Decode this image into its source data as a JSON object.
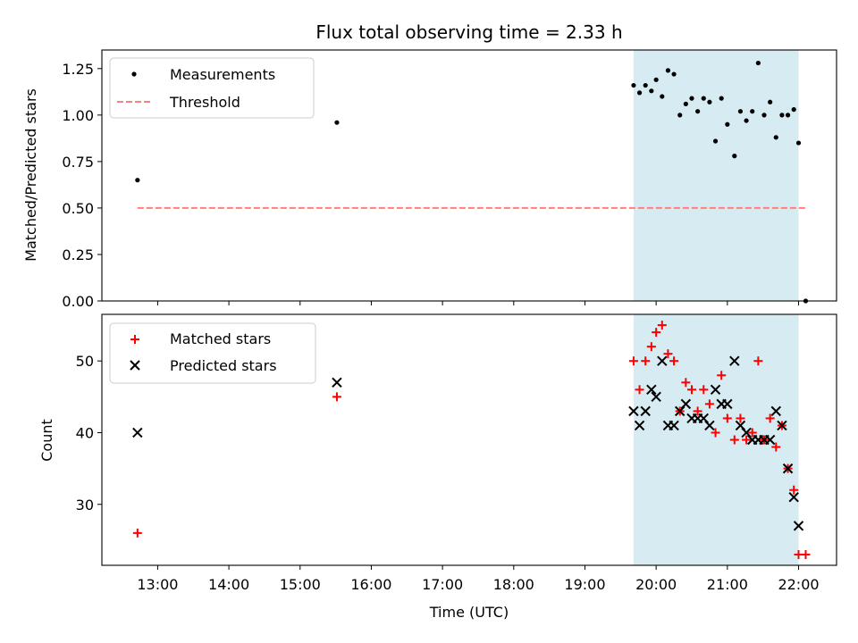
{
  "chart_data": {
    "type": "scatter",
    "title": "Flux total observing time = 2.33 h",
    "xlabel": "Time (UTC)",
    "x_ticks": [
      "13:00",
      "14:00",
      "15:00",
      "16:00",
      "17:00",
      "18:00",
      "19:00",
      "20:00",
      "21:00",
      "22:00"
    ],
    "x_range": [
      "12:13",
      "22:32"
    ],
    "highlight_span": {
      "start": "19:41",
      "end": "22:00",
      "color": "#add8e6"
    },
    "panels": [
      {
        "name": "ratio",
        "ylabel": "Matched/Predicted stars",
        "ylim": [
          0,
          1.35
        ],
        "yticks": [
          "0.00",
          "0.25",
          "0.50",
          "0.75",
          "1.00",
          "1.25"
        ],
        "legend": [
          "Measurements",
          "Threshold"
        ],
        "legend_position": "upper-left",
        "threshold": {
          "value": 0.5,
          "from": "12:43",
          "to": "22:06",
          "color": "#ff7f7f"
        },
        "measurements": [
          {
            "t": "12:43",
            "y": 0.65
          },
          {
            "t": "15:31",
            "y": 0.96
          },
          {
            "t": "19:41",
            "y": 1.16
          },
          {
            "t": "19:46",
            "y": 1.12
          },
          {
            "t": "19:51",
            "y": 1.16
          },
          {
            "t": "19:56",
            "y": 1.13
          },
          {
            "t": "20:00",
            "y": 1.19
          },
          {
            "t": "20:05",
            "y": 1.1
          },
          {
            "t": "20:10",
            "y": 1.24
          },
          {
            "t": "20:15",
            "y": 1.22
          },
          {
            "t": "20:20",
            "y": 1.0
          },
          {
            "t": "20:25",
            "y": 1.06
          },
          {
            "t": "20:30",
            "y": 1.09
          },
          {
            "t": "20:35",
            "y": 1.02
          },
          {
            "t": "20:40",
            "y": 1.09
          },
          {
            "t": "20:45",
            "y": 1.07
          },
          {
            "t": "20:50",
            "y": 0.86
          },
          {
            "t": "20:55",
            "y": 1.09
          },
          {
            "t": "21:00",
            "y": 0.95
          },
          {
            "t": "21:06",
            "y": 0.78
          },
          {
            "t": "21:11",
            "y": 1.02
          },
          {
            "t": "21:16",
            "y": 0.97
          },
          {
            "t": "21:21",
            "y": 1.02
          },
          {
            "t": "21:26",
            "y": 1.28
          },
          {
            "t": "21:31",
            "y": 1.0
          },
          {
            "t": "21:36",
            "y": 1.07
          },
          {
            "t": "21:41",
            "y": 0.88
          },
          {
            "t": "21:46",
            "y": 1.0
          },
          {
            "t": "21:51",
            "y": 1.0
          },
          {
            "t": "21:56",
            "y": 1.03
          },
          {
            "t": "22:00",
            "y": 0.85
          },
          {
            "t": "22:06",
            "y": 0.0
          }
        ]
      },
      {
        "name": "counts",
        "ylabel": "Count",
        "ylim": [
          21.5,
          56.5
        ],
        "yticks": [
          "30",
          "40",
          "50"
        ],
        "legend": [
          "Matched stars",
          "Predicted stars"
        ],
        "legend_position": "upper-left",
        "series": [
          {
            "name": "Matched stars",
            "marker": "+",
            "color": "#ff0000",
            "points": [
              {
                "t": "12:43",
                "y": 26
              },
              {
                "t": "15:31",
                "y": 45
              },
              {
                "t": "19:41",
                "y": 50
              },
              {
                "t": "19:46",
                "y": 46
              },
              {
                "t": "19:51",
                "y": 50
              },
              {
                "t": "19:56",
                "y": 52
              },
              {
                "t": "20:00",
                "y": 54
              },
              {
                "t": "20:05",
                "y": 55
              },
              {
                "t": "20:10",
                "y": 51
              },
              {
                "t": "20:15",
                "y": 50
              },
              {
                "t": "20:20",
                "y": 43
              },
              {
                "t": "20:25",
                "y": 47
              },
              {
                "t": "20:30",
                "y": 46
              },
              {
                "t": "20:35",
                "y": 43
              },
              {
                "t": "20:40",
                "y": 46
              },
              {
                "t": "20:45",
                "y": 44
              },
              {
                "t": "20:50",
                "y": 40
              },
              {
                "t": "20:55",
                "y": 48
              },
              {
                "t": "21:00",
                "y": 42
              },
              {
                "t": "21:06",
                "y": 39
              },
              {
                "t": "21:11",
                "y": 42
              },
              {
                "t": "21:16",
                "y": 39
              },
              {
                "t": "21:21",
                "y": 40
              },
              {
                "t": "21:26",
                "y": 50
              },
              {
                "t": "21:31",
                "y": 39
              },
              {
                "t": "21:36",
                "y": 42
              },
              {
                "t": "21:41",
                "y": 38
              },
              {
                "t": "21:46",
                "y": 41
              },
              {
                "t": "21:51",
                "y": 35
              },
              {
                "t": "21:56",
                "y": 32
              },
              {
                "t": "22:00",
                "y": 23
              },
              {
                "t": "22:06",
                "y": 23
              }
            ]
          },
          {
            "name": "Predicted stars",
            "marker": "x",
            "color": "#000000",
            "points": [
              {
                "t": "12:43",
                "y": 40
              },
              {
                "t": "15:31",
                "y": 47
              },
              {
                "t": "19:41",
                "y": 43
              },
              {
                "t": "19:46",
                "y": 41
              },
              {
                "t": "19:51",
                "y": 43
              },
              {
                "t": "19:56",
                "y": 46
              },
              {
                "t": "20:00",
                "y": 45
              },
              {
                "t": "20:05",
                "y": 50
              },
              {
                "t": "20:10",
                "y": 41
              },
              {
                "t": "20:15",
                "y": 41
              },
              {
                "t": "20:20",
                "y": 43
              },
              {
                "t": "20:25",
                "y": 44
              },
              {
                "t": "20:30",
                "y": 42
              },
              {
                "t": "20:35",
                "y": 42
              },
              {
                "t": "20:40",
                "y": 42
              },
              {
                "t": "20:45",
                "y": 41
              },
              {
                "t": "20:50",
                "y": 46
              },
              {
                "t": "20:55",
                "y": 44
              },
              {
                "t": "21:00",
                "y": 44
              },
              {
                "t": "21:06",
                "y": 50
              },
              {
                "t": "21:11",
                "y": 41
              },
              {
                "t": "21:16",
                "y": 40
              },
              {
                "t": "21:21",
                "y": 39
              },
              {
                "t": "21:26",
                "y": 39
              },
              {
                "t": "21:31",
                "y": 39
              },
              {
                "t": "21:36",
                "y": 39
              },
              {
                "t": "21:41",
                "y": 43
              },
              {
                "t": "21:46",
                "y": 41
              },
              {
                "t": "21:51",
                "y": 35
              },
              {
                "t": "21:56",
                "y": 31
              },
              {
                "t": "22:00",
                "y": 27
              }
            ]
          }
        ]
      }
    ]
  }
}
